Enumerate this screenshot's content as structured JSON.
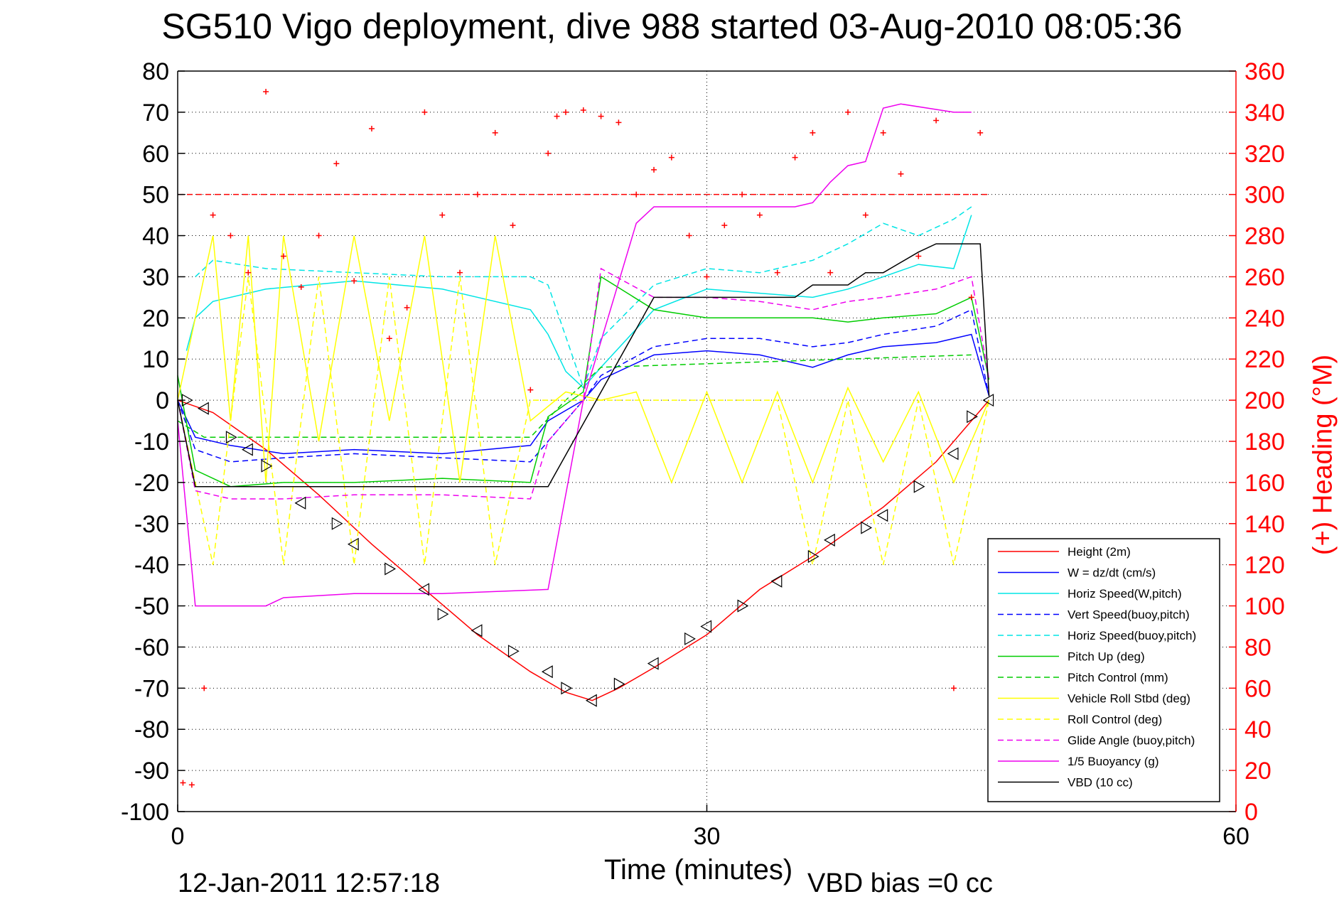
{
  "chart_data": {
    "type": "line",
    "title": "SG510 Vigo deployment, dive 988 started 03-Aug-2010 08:05:36",
    "xlabel": "Time (minutes)",
    "ylabel": "",
    "y2label": "(+) Heading (°M)",
    "xlim": [
      0,
      60
    ],
    "ylim": [
      -100,
      80
    ],
    "y2lim": [
      0,
      360
    ],
    "xticks": [
      "0",
      "30",
      "60"
    ],
    "yticks": [
      "80",
      "70",
      "60",
      "50",
      "40",
      "30",
      "20",
      "10",
      "0",
      "-10",
      "-20",
      "-30",
      "-40",
      "-50",
      "-60",
      "-70",
      "-80",
      "-90",
      "-100"
    ],
    "y2ticks": [
      "360",
      "340",
      "320",
      "300",
      "280",
      "260",
      "240",
      "220",
      "200",
      "180",
      "160",
      "140",
      "120",
      "100",
      "80",
      "60",
      "40",
      "20",
      "0"
    ],
    "grid": true,
    "legend_position": "bottom-right",
    "series": [
      {
        "name": "Height (2m)",
        "color": "#ff0000",
        "style": "solid",
        "x": [
          0,
          2,
          5,
          8,
          11,
          14,
          17,
          20,
          22,
          23.5,
          25,
          27,
          30,
          33,
          36,
          38,
          40,
          43,
          45,
          46
        ],
        "y": [
          0,
          -3,
          -12,
          -23,
          -35,
          -46,
          -57,
          -66,
          -71,
          -73,
          -70,
          -65,
          -57,
          -46,
          -38,
          -32,
          -26,
          -15,
          -5,
          0
        ]
      },
      {
        "name": "W = dz/dt (cm/s)",
        "color": "#0000ff",
        "style": "solid",
        "x": [
          0,
          1,
          3,
          6,
          10,
          15,
          20,
          21,
          23,
          24,
          27,
          30,
          33,
          34,
          36,
          38,
          40,
          43,
          45,
          46
        ],
        "y": [
          0,
          -9,
          -11,
          -13,
          -12,
          -13,
          -11,
          -5,
          0,
          5,
          11,
          12,
          11,
          10,
          8,
          11,
          13,
          14,
          16,
          1
        ]
      },
      {
        "name": "Horiz Speed(W,pitch)",
        "color": "#00e5e5",
        "style": "solid",
        "x": [
          0.5,
          1,
          2,
          5,
          10,
          15,
          20,
          21,
          22,
          23,
          24,
          27,
          30,
          33,
          36,
          38,
          40,
          42,
          44,
          45
        ],
        "y": [
          12,
          20,
          24,
          27,
          29,
          27,
          22,
          16,
          7,
          3,
          8,
          22,
          27,
          26,
          25,
          27,
          30,
          33,
          32,
          45
        ]
      },
      {
        "name": "Vert Speed(buoy,pitch)",
        "color": "#0000ff",
        "style": "dashed",
        "x": [
          0,
          1,
          3,
          6,
          10,
          15,
          20,
          21,
          23,
          24,
          27,
          30,
          33,
          36,
          38,
          40,
          43,
          45,
          46
        ],
        "y": [
          0,
          -12,
          -15,
          -14,
          -13,
          -14,
          -15,
          -10,
          0,
          6,
          13,
          15,
          15,
          13,
          14,
          16,
          18,
          22,
          1
        ]
      },
      {
        "name": "Horiz Speed(buoy,pitch)",
        "color": "#00e5e5",
        "style": "dashed",
        "x": [
          1,
          2,
          5,
          10,
          15,
          20,
          21,
          23,
          24,
          27,
          30,
          33,
          36,
          38,
          40,
          42,
          44,
          45
        ],
        "y": [
          30,
          34,
          32,
          31,
          30,
          30,
          28,
          3,
          15,
          28,
          32,
          31,
          34,
          38,
          43,
          40,
          44,
          47
        ]
      },
      {
        "name": "Pitch Up (deg)",
        "color": "#00cc00",
        "style": "solid",
        "x": [
          0,
          1,
          3,
          6,
          10,
          15,
          20,
          21,
          23,
          24,
          27,
          30,
          33,
          36,
          38,
          40,
          43,
          45,
          46
        ],
        "y": [
          6,
          -17,
          -21,
          -20,
          -20,
          -19,
          -20,
          -4,
          2,
          30,
          22,
          20,
          20,
          20,
          19,
          20,
          21,
          25,
          5
        ]
      },
      {
        "name": "Pitch Control (mm)",
        "color": "#00cc00",
        "style": "dashed",
        "x": [
          0,
          1.5,
          20,
          22,
          24,
          45
        ],
        "y": [
          -5,
          -9,
          -9,
          0,
          8,
          11
        ]
      },
      {
        "name": "Vehicle Roll Stbd (deg)",
        "color": "#ffff00",
        "style": "solid",
        "x": [
          0,
          2,
          3,
          4,
          5,
          6,
          8,
          10,
          12,
          14,
          16,
          18,
          20,
          22,
          24,
          26,
          28,
          30,
          32,
          34,
          36,
          38,
          40,
          42,
          44,
          46
        ],
        "y": [
          0,
          40,
          -5,
          40,
          -20,
          40,
          -10,
          40,
          -5,
          40,
          -20,
          40,
          -5,
          2,
          0,
          2,
          -20,
          2,
          -20,
          2,
          -20,
          3,
          -15,
          2,
          -20,
          0
        ]
      },
      {
        "name": "Roll Control (deg)",
        "color": "#ffff00",
        "style": "dashed",
        "x": [
          0,
          2,
          4,
          6,
          8,
          10,
          12,
          14,
          16,
          18,
          20,
          22,
          24,
          30,
          34,
          36,
          38,
          40,
          42,
          44,
          46
        ],
        "y": [
          0,
          -40,
          30,
          -40,
          30,
          -40,
          30,
          -40,
          30,
          -40,
          0,
          0,
          0,
          0,
          0,
          -40,
          0,
          -40,
          0,
          -40,
          0
        ]
      },
      {
        "name": "Glide Angle (buoy,pitch)",
        "color": "#ee00ee",
        "style": "dashed",
        "x": [
          0,
          1,
          3,
          6,
          10,
          15,
          20,
          21,
          23,
          24,
          27,
          30,
          33,
          36,
          38,
          40,
          43,
          45,
          46
        ],
        "y": [
          0,
          -22,
          -24,
          -24,
          -23,
          -23,
          -24,
          -10,
          0,
          32,
          25,
          25,
          24,
          22,
          24,
          25,
          27,
          30,
          5
        ]
      },
      {
        "name": "1/5 Buoyancy (g)",
        "color": "#ee00ee",
        "style": "solid",
        "x": [
          0,
          1,
          5,
          6,
          10,
          15,
          21,
          23,
          26,
          27,
          35,
          36,
          37,
          38,
          39,
          40,
          41,
          44,
          45
        ],
        "y": [
          -5,
          -50,
          -50,
          -48,
          -47,
          -47,
          -46,
          0,
          43,
          47,
          47,
          48,
          53,
          57,
          58,
          71,
          72,
          70,
          70
        ]
      },
      {
        "name": "VBD (10 cc)",
        "color": "#000000",
        "style": "solid",
        "x": [
          0,
          1,
          21,
          27,
          35,
          36,
          38,
          39,
          40,
          42,
          43,
          45.5,
          46
        ],
        "y": [
          0,
          -21,
          -21,
          25,
          25,
          28,
          28,
          31,
          31,
          36,
          38,
          38,
          1
        ]
      }
    ],
    "heading_points": {
      "name": "Heading",
      "color": "#ff0000",
      "x": [
        0.3,
        0.8,
        1.5,
        2,
        3,
        4,
        5,
        6,
        7,
        8,
        9,
        10,
        11,
        12,
        13,
        14,
        15,
        16,
        17,
        18,
        19,
        20,
        21,
        21.5,
        22,
        23,
        24,
        25,
        26,
        27,
        28,
        29,
        30,
        31,
        32,
        33,
        34,
        35,
        36,
        37,
        38,
        39,
        40,
        41,
        42,
        43,
        44,
        45,
        45.5
      ],
      "y": [
        14,
        13,
        60,
        290,
        280,
        262,
        350,
        270,
        255,
        280,
        315,
        258,
        332,
        230,
        245,
        340,
        290,
        262,
        300,
        330,
        285,
        205,
        320,
        338,
        340,
        341,
        338,
        335,
        300,
        312,
        318,
        280,
        260,
        285,
        300,
        290,
        262,
        318,
        330,
        262,
        340,
        290,
        330,
        310,
        270,
        336,
        60,
        250,
        330
      ]
    },
    "triangle_markers": {
      "name": "Height markers",
      "color": "#000000",
      "x": [
        0.5,
        1.5,
        3,
        4,
        5,
        7,
        9,
        10,
        12,
        14,
        15,
        17,
        19,
        21,
        22,
        23.5,
        25,
        27,
        29,
        30,
        32,
        34,
        36,
        37,
        39,
        40,
        42,
        44,
        45,
        46
      ],
      "y": [
        0,
        -2,
        -9,
        -12,
        -16,
        -25,
        -30,
        -35,
        -41,
        -46,
        -52,
        -56,
        -61,
        -66,
        -70,
        -73,
        -69,
        -64,
        -58,
        -55,
        -50,
        -44,
        -38,
        -34,
        -31,
        -28,
        -21,
        -13,
        -4,
        0
      ]
    },
    "reference_line": {
      "name": "",
      "color": "#ff0000",
      "style": "dashed",
      "y": 50
    }
  },
  "footer": {
    "timestamp": "12-Jan-2011 12:57:18",
    "vbd_bias": "VBD bias =0 cc"
  }
}
